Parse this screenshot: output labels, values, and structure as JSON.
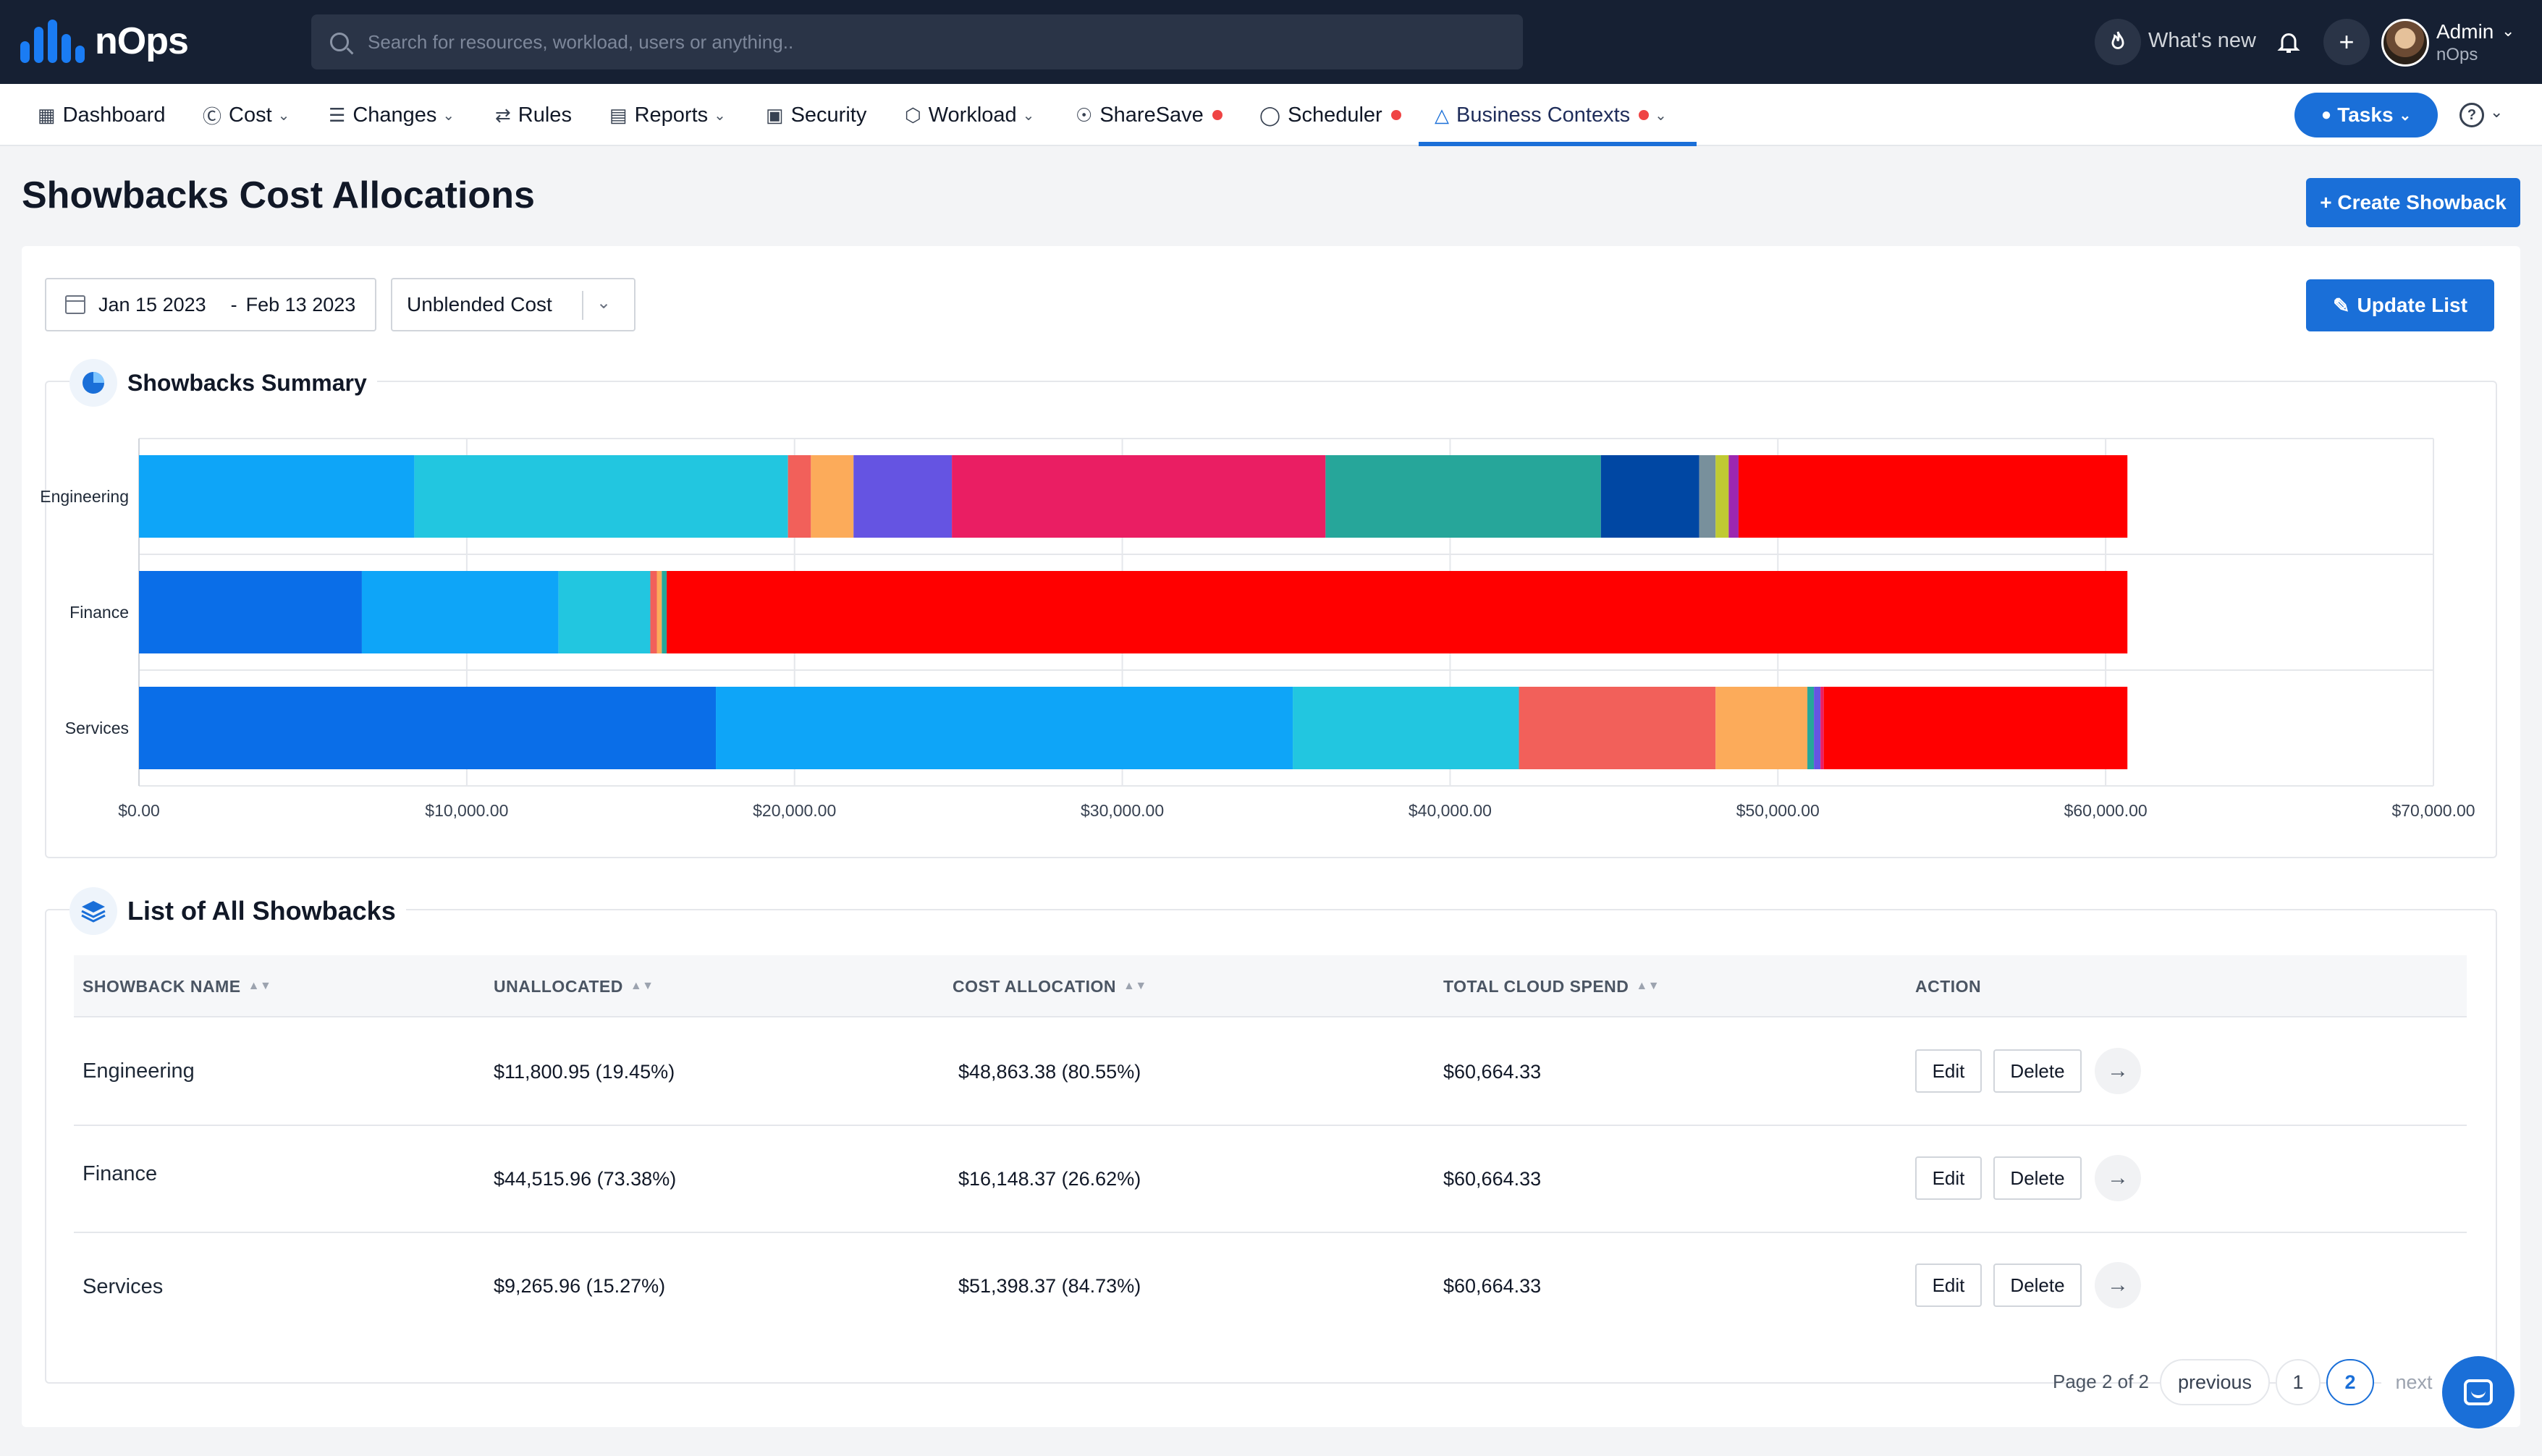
{
  "topbar": {
    "brand": "nOps",
    "search_placeholder": "Search for resources, workload, users or anything..",
    "whats_new": "What's new",
    "user_name": "Admin",
    "user_org": "nOps"
  },
  "nav": {
    "items": [
      {
        "label": "Dashboard"
      },
      {
        "label": "Cost"
      },
      {
        "label": "Changes"
      },
      {
        "label": "Rules"
      },
      {
        "label": "Reports"
      },
      {
        "label": "Security"
      },
      {
        "label": "Workload"
      },
      {
        "label": "ShareSave"
      },
      {
        "label": "Scheduler"
      },
      {
        "label": "Business Contexts"
      }
    ],
    "tasks_label": "Tasks"
  },
  "page": {
    "title": "Showbacks Cost Allocations",
    "create_label": "+ Create Showback",
    "update_label": "Update List"
  },
  "filters": {
    "date_start": "Jan 15 2023",
    "date_sep": "-",
    "date_end": "Feb 13 2023",
    "cost_type": "Unblended Cost"
  },
  "summary": {
    "title": "Showbacks Summary"
  },
  "chart_data": {
    "type": "bar",
    "orientation": "horizontal",
    "stacked": true,
    "categories": [
      "Engineering",
      "Finance",
      "Services"
    ],
    "x_ticks": [
      "$0.00",
      "$10,000.00",
      "$20,000.00",
      "$30,000.00",
      "$40,000.00",
      "$50,000.00",
      "$60,000.00",
      "$70,000.00"
    ],
    "xlim": [
      0,
      70000
    ],
    "grid": true,
    "segments": [
      [
        {
          "value": 8400,
          "color": "#0ea5f8"
        },
        {
          "value": 11400,
          "color": "#22c6e0"
        },
        {
          "value": 700,
          "color": "#f2605a"
        },
        {
          "value": 1300,
          "color": "#fcab5a"
        },
        {
          "value": 3000,
          "color": "#6554e2"
        },
        {
          "value": 11400,
          "color": "#ea1e63"
        },
        {
          "value": 8400,
          "color": "#26a69a"
        },
        {
          "value": 3000,
          "color": "#0047a3"
        },
        {
          "value": 500,
          "color": "#78909c"
        },
        {
          "value": 400,
          "color": "#c0ca33"
        },
        {
          "value": 300,
          "color": "#9c27b0"
        },
        {
          "value": 11864,
          "color": "#ff0000"
        }
      ],
      [
        {
          "value": 6800,
          "color": "#0a6ee8"
        },
        {
          "value": 6000,
          "color": "#0ea5f8"
        },
        {
          "value": 2800,
          "color": "#22c6e0"
        },
        {
          "value": 200,
          "color": "#f2605a"
        },
        {
          "value": 150,
          "color": "#fcab5a"
        },
        {
          "value": 150,
          "color": "#26a69a"
        },
        {
          "value": 44564,
          "color": "#ff0000"
        }
      ],
      [
        {
          "value": 17600,
          "color": "#0a6ee8"
        },
        {
          "value": 17600,
          "color": "#0ea5f8"
        },
        {
          "value": 6900,
          "color": "#22c6e0"
        },
        {
          "value": 6000,
          "color": "#f2605a"
        },
        {
          "value": 2800,
          "color": "#fcab5a"
        },
        {
          "value": 200,
          "color": "#26a69a"
        },
        {
          "value": 200,
          "color": "#6554e2"
        },
        {
          "value": 100,
          "color": "#ea1e63"
        },
        {
          "value": 9264,
          "color": "#ff0000"
        }
      ]
    ]
  },
  "list": {
    "title": "List of All Showbacks",
    "columns": [
      "SHOWBACK NAME",
      "UNALLOCATED",
      "COST ALLOCATION",
      "TOTAL CLOUD SPEND",
      "ACTION"
    ],
    "rows": [
      {
        "name": "Engineering",
        "unallocated": "$11,800.95 (19.45%)",
        "allocation": "$48,863.38 (80.55%)",
        "total": "$60,664.33"
      },
      {
        "name": "Finance",
        "unallocated": "$44,515.96 (73.38%)",
        "allocation": "$16,148.37 (26.62%)",
        "total": "$60,664.33"
      },
      {
        "name": "Services",
        "unallocated": "$9,265.96 (15.27%)",
        "allocation": "$51,398.37 (84.73%)",
        "total": "$60,664.33"
      }
    ],
    "edit_label": "Edit",
    "delete_label": "Delete"
  },
  "pagination": {
    "summary": "Page 2 of 2",
    "previous": "previous",
    "pages": [
      "1",
      "2"
    ],
    "next": "next"
  }
}
